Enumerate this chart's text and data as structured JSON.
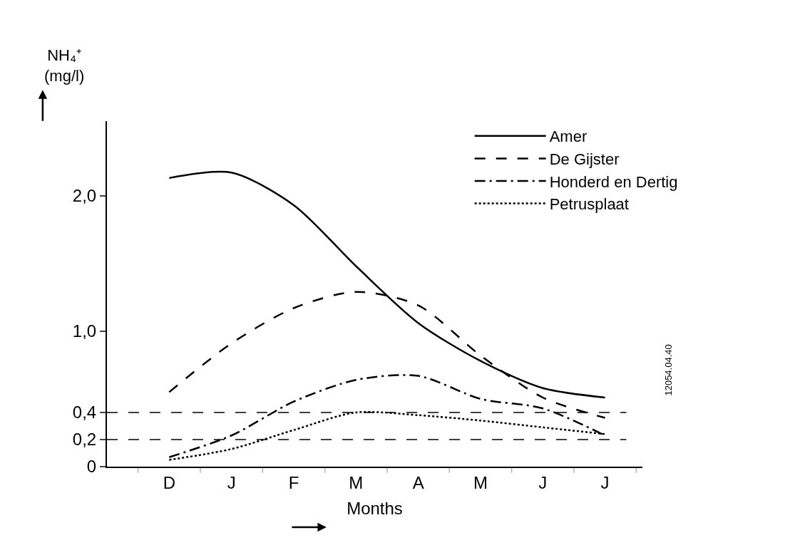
{
  "chart_data": {
    "type": "line",
    "ylabel": "NH₄⁺\n(mg/l)",
    "xlabel": "Months",
    "categories": [
      "D",
      "J",
      "F",
      "M",
      "A",
      "M",
      "J",
      "J"
    ],
    "ylim": [
      0,
      2.55
    ],
    "yticks": [
      {
        "value": 0,
        "label": "0"
      },
      {
        "value": 0.2,
        "label": "0,2"
      },
      {
        "value": 0.4,
        "label": "0,4"
      },
      {
        "value": 1.0,
        "label": "1,0"
      },
      {
        "value": 2.0,
        "label": "2,0"
      }
    ],
    "grid": false,
    "legend": "top right",
    "marker": "none",
    "series": [
      {
        "name": "Amer",
        "color": "#000000",
        "line_style": "solid",
        "values": [
          2.13,
          2.17,
          1.93,
          1.48,
          1.06,
          0.78,
          0.58,
          0.51
        ]
      },
      {
        "name": "De Gijster",
        "color": "#000000",
        "line_style": "dashed",
        "values": [
          0.55,
          0.91,
          1.17,
          1.29,
          1.19,
          0.82,
          0.51,
          0.36
        ]
      },
      {
        "name": "Honderd en Dertig",
        "color": "#000000",
        "line_style": "dashdot",
        "values": [
          0.07,
          0.23,
          0.48,
          0.64,
          0.67,
          0.5,
          0.43,
          0.23
        ]
      },
      {
        "name": "Petrusplaat",
        "color": "#000000",
        "line_style": "dotted",
        "values": [
          0.05,
          0.13,
          0.27,
          0.4,
          0.38,
          0.34,
          0.29,
          0.24
        ]
      }
    ],
    "ref_lines": [
      {
        "axis": "y",
        "value": 0.4,
        "color": "#000000",
        "line_style": "dashed"
      },
      {
        "axis": "y",
        "value": 0.2,
        "color": "#000000",
        "line_style": "dashed"
      }
    ],
    "annotations": [
      "12054.04.40"
    ]
  }
}
